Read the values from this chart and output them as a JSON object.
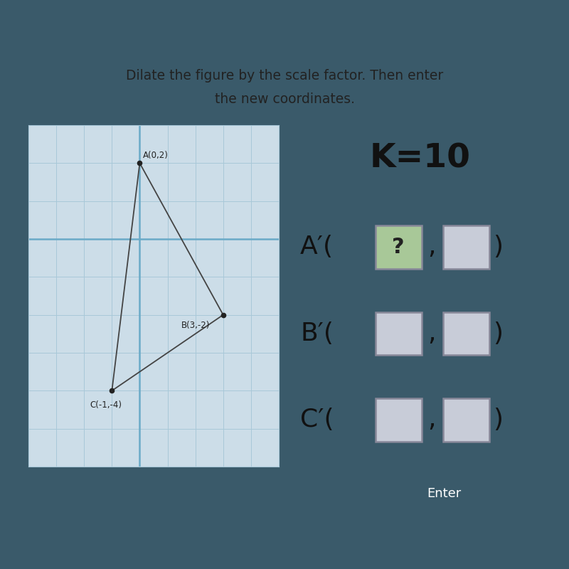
{
  "title_line1": "Dilate the figure by the scale factor. Then enter",
  "title_line2": "the new coordinates.",
  "outer_bg": "#3a5a6a",
  "card_bg": "#f0ede4",
  "grid_bg": "#ccdde8",
  "scale_factor_text": "K=10",
  "points": {
    "A": [
      0,
      2
    ],
    "B": [
      3,
      -2
    ],
    "C": [
      -1,
      -4
    ]
  },
  "point_labels": {
    "A": "A(0,2)",
    "B": "B(3,-2)",
    "C": "C(-1,-4)"
  },
  "enter_btn_color": "#3ab0a0",
  "enter_text": "Enter",
  "grid_color": "#a8c8d8",
  "axis_color": "#6aaac8",
  "triangle_color": "#444444",
  "point_color": "#222222",
  "title_color": "#222222",
  "box_color_green": "#a8c898",
  "box_color_gray": "#c8ccd8",
  "box_edge_color": "#888899"
}
